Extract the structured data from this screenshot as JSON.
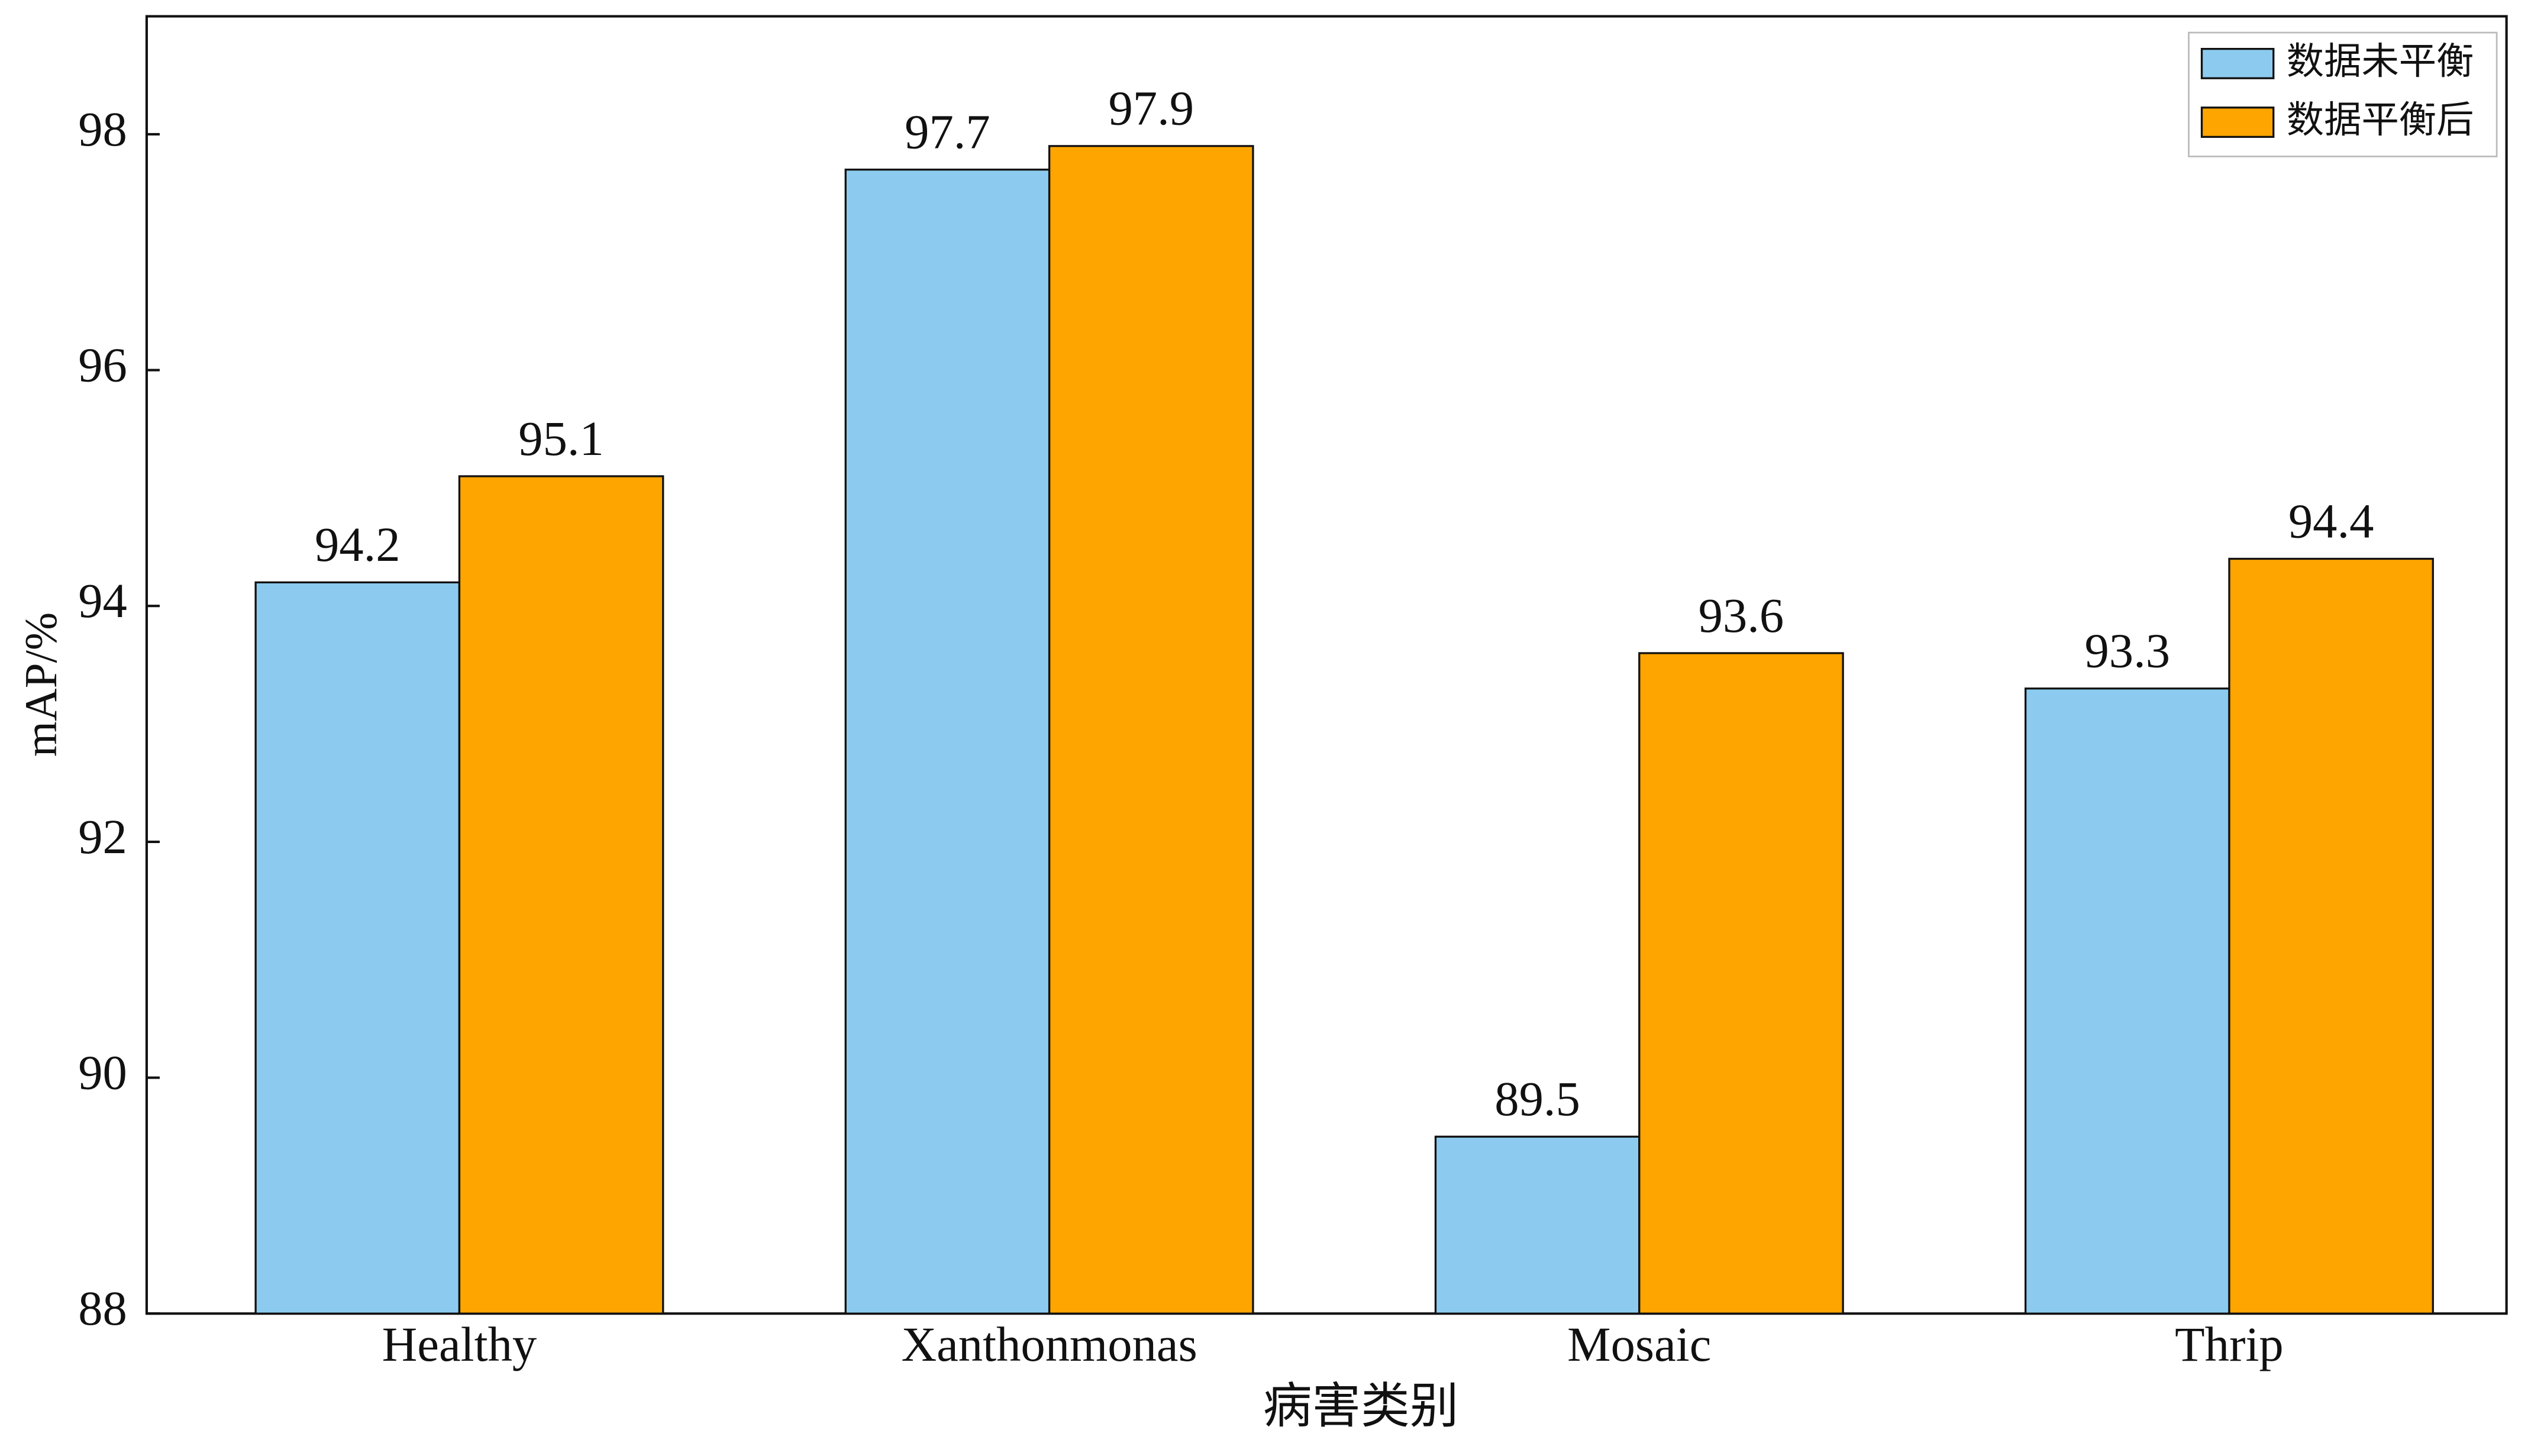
{
  "chart_data": {
    "type": "bar",
    "x_label": "病害类别",
    "y_label": "mAP/%",
    "categories": [
      "Healthy",
      "Xanthonmonas",
      "Mosaic",
      "Thrip"
    ],
    "series": [
      {
        "name": "数据未平衡",
        "color": "#8ccbef",
        "values": [
          94.2,
          97.7,
          89.5,
          93.3
        ]
      },
      {
        "name": "数据平衡后",
        "color": "#ffa500",
        "values": [
          95.1,
          97.9,
          93.6,
          94.4
        ]
      }
    ],
    "ylim": [
      88,
      99
    ],
    "yticks": [
      88,
      90,
      92,
      94,
      96,
      98
    ],
    "legend": "upper-right",
    "grid": false
  }
}
